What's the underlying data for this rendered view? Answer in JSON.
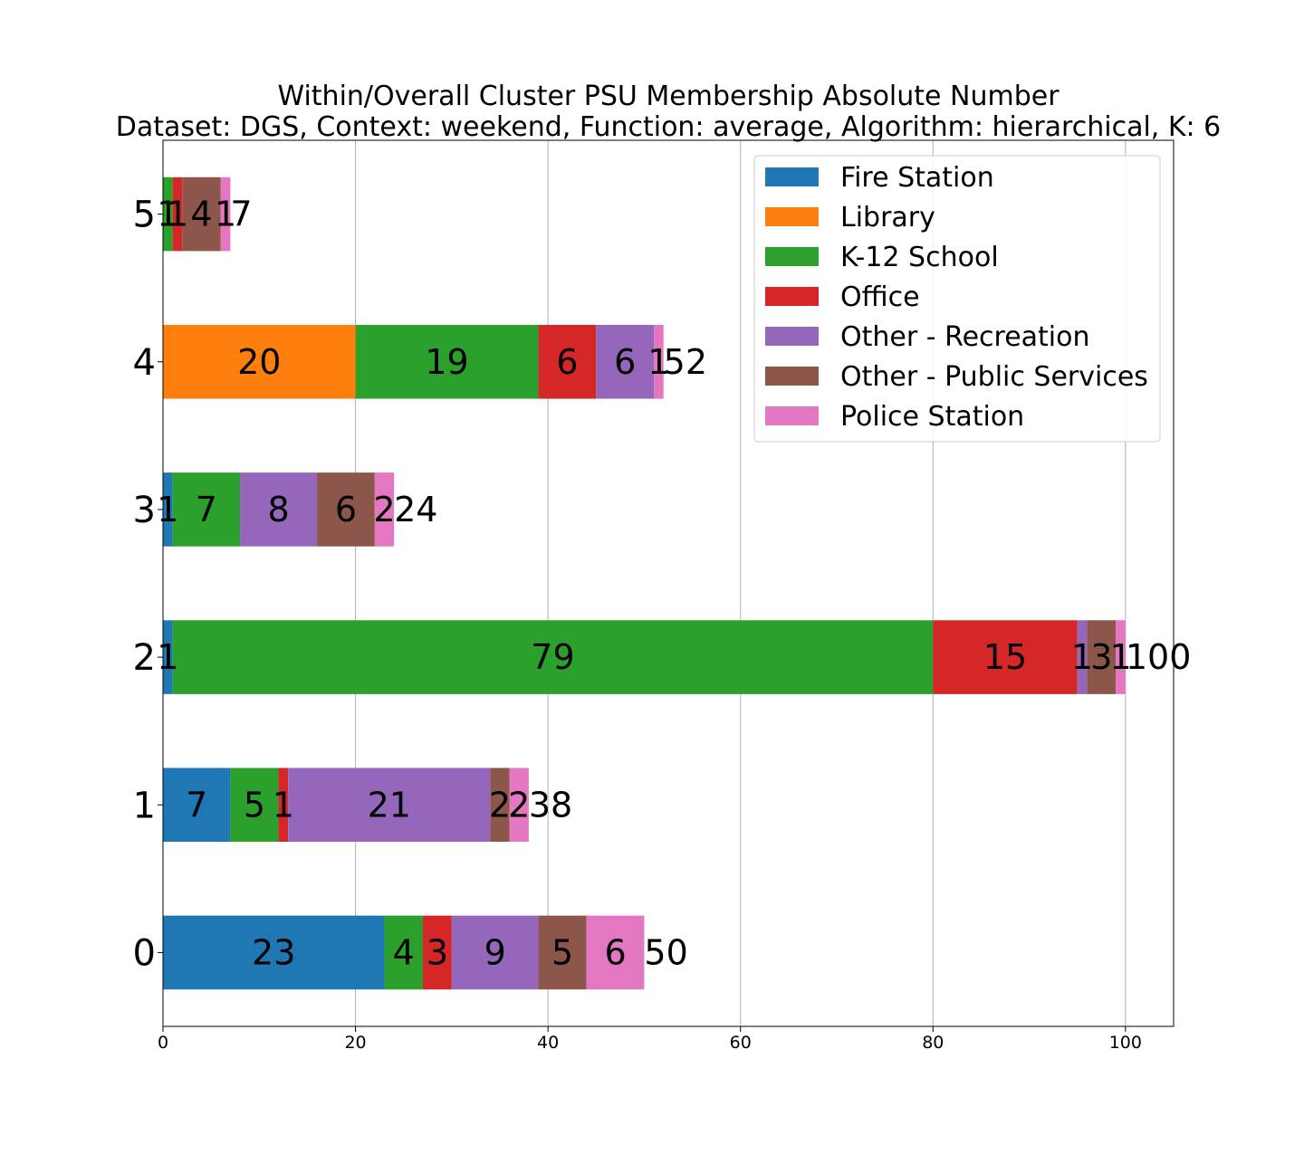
{
  "chart_data": {
    "type": "bar",
    "orientation": "horizontal",
    "stacked": true,
    "title_lines": [
      "Within/Overall Cluster PSU Membership Absolute Number",
      "Dataset: DGS, Context: weekend, Function: average, Algorithm: hierarchical, K: 6"
    ],
    "xlabel": "",
    "ylabel": "",
    "xlim": [
      0,
      105
    ],
    "x_ticks": [
      0,
      20,
      40,
      60,
      80,
      100
    ],
    "grid": "x",
    "legend_position": "top-right",
    "categories": [
      "0",
      "1",
      "2",
      "3",
      "4",
      "5"
    ],
    "series": [
      {
        "name": "Fire Station",
        "color": "#1f77b4",
        "values": [
          23,
          7,
          1,
          1,
          0,
          0
        ]
      },
      {
        "name": "Library",
        "color": "#ff7f0e",
        "values": [
          0,
          0,
          0,
          0,
          20,
          0
        ]
      },
      {
        "name": "K-12 School",
        "color": "#2ca02c",
        "values": [
          4,
          5,
          79,
          7,
          19,
          1
        ]
      },
      {
        "name": "Office",
        "color": "#d62728",
        "values": [
          3,
          1,
          15,
          0,
          6,
          1
        ]
      },
      {
        "name": "Other - Recreation",
        "color": "#9467bd",
        "values": [
          9,
          21,
          1,
          8,
          6,
          0
        ]
      },
      {
        "name": "Other - Public Services",
        "color": "#8c564b",
        "values": [
          5,
          2,
          3,
          6,
          0,
          4
        ]
      },
      {
        "name": "Police Station",
        "color": "#e377c2",
        "values": [
          6,
          2,
          1,
          2,
          1,
          1
        ]
      }
    ],
    "totals": [
      50,
      38,
      100,
      24,
      52,
      7
    ]
  }
}
